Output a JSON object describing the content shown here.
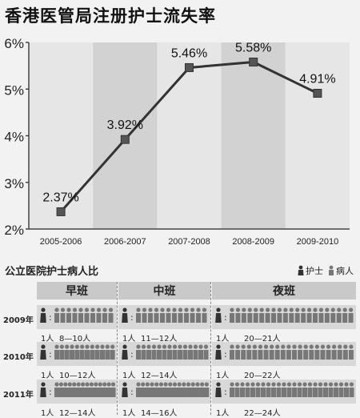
{
  "title": "香港医管局注册护士流失率",
  "chart_data": {
    "type": "line",
    "categories": [
      "2005-2006",
      "2006-2007",
      "2007-2008",
      "2008-2009",
      "2009-2010"
    ],
    "values": [
      2.37,
      3.92,
      5.46,
      5.58,
      4.91
    ],
    "data_labels": [
      "2.37%",
      "3.92%",
      "5.46%",
      "5.58%",
      "4.91%"
    ],
    "yticks": [
      "2%",
      "3%",
      "4%",
      "5%",
      "6%"
    ],
    "ylim": [
      2,
      6
    ],
    "title": "香港医管局注册护士流失率",
    "grid": false,
    "colors": {
      "line": "#333333",
      "marker": "#555555",
      "band_light": "#e6e6e6",
      "band_dark": "#d2d2d2"
    }
  },
  "ratio": {
    "title": "公立医院护士病人比",
    "legend": {
      "nurse": "护士",
      "patient": "病人"
    },
    "shifts": [
      "早班",
      "中班",
      "夜班"
    ],
    "rows": [
      {
        "year": "2009年",
        "cells": [
          {
            "nurse": "1人",
            "patients": "8—10人",
            "count": 10
          },
          {
            "nurse": "1人",
            "patients": "11—12人",
            "count": 12
          },
          {
            "nurse": "1人",
            "patients": "20—21人",
            "count": 21
          }
        ]
      },
      {
        "year": "2010年",
        "cells": [
          {
            "nurse": "1人",
            "patients": "10—12人",
            "count": 12
          },
          {
            "nurse": "1人",
            "patients": "12—14人",
            "count": 14
          },
          {
            "nurse": "1人",
            "patients": "20—22人",
            "count": 22
          }
        ]
      },
      {
        "year": "2011年",
        "cells": [
          {
            "nurse": "1人",
            "patients": "12—14人",
            "count": 14
          },
          {
            "nurse": "1人",
            "patients": "14—16人",
            "count": 16
          },
          {
            "nurse": "1人",
            "patients": "22—24人",
            "count": 24
          }
        ]
      }
    ],
    "colors": {
      "nurse": "#333333",
      "patient": "#777777"
    }
  }
}
